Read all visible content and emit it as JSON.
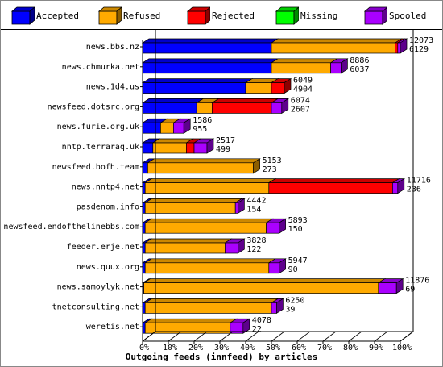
{
  "chart_data": {
    "type": "bar",
    "stacked": true,
    "orientation": "horizontal",
    "title": "",
    "xlabel": "Outgoing feeds (innfeed) by articles",
    "ylabel": "",
    "xlim": [
      0,
      100
    ],
    "x_unit": "percent",
    "grid": false,
    "legend_position": "top",
    "x_ticks": [
      "0%",
      "10%",
      "20%",
      "30%",
      "40%",
      "50%",
      "60%",
      "70%",
      "80%",
      "90%",
      "100%"
    ],
    "categories": [
      "news.bbs.nz",
      "news.chmurka.net",
      "news.1d4.us",
      "newsfeed.dotsrc.org",
      "news.furie.org.uk",
      "nntp.terraraq.uk",
      "newsfeed.bofh.team",
      "news.nntp4.net",
      "pasdenom.info",
      "newsfeed.endofthelinebbs.com",
      "feeder.erje.net",
      "news.quux.org",
      "news.samoylyk.net",
      "tnetconsulting.net",
      "weretis.net"
    ],
    "series": [
      {
        "name": "Accepted",
        "color": "#0000ff",
        "values": [
          50,
          50,
          40,
          21,
          7,
          4,
          2,
          1,
          1,
          1,
          1,
          1,
          0.5,
          1,
          1
        ]
      },
      {
        "name": "Refused",
        "color": "#ffaa00",
        "values": [
          48,
          23,
          10,
          6,
          5,
          13,
          41,
          48,
          35,
          47,
          31,
          48,
          91,
          49,
          33
        ]
      },
      {
        "name": "Rejected",
        "color": "#ff0000",
        "values": [
          1,
          0,
          5,
          23,
          0,
          3,
          0,
          48,
          0,
          0,
          0,
          0,
          0,
          0,
          0
        ]
      },
      {
        "name": "Missing",
        "color": "#00ff00",
        "values": [
          0,
          0,
          0,
          0,
          0,
          0,
          0,
          0,
          0,
          0,
          0,
          0,
          0,
          0,
          0
        ]
      },
      {
        "name": "Spooled",
        "color": "#aa00ff",
        "values": [
          1,
          4,
          0,
          4,
          4,
          5,
          0,
          2,
          1,
          5,
          5,
          4,
          7,
          2,
          5
        ]
      }
    ],
    "value_labels": [
      [
        "12073",
        "6129"
      ],
      [
        "8886",
        "6037"
      ],
      [
        "6049",
        "4904"
      ],
      [
        "6074",
        "2607"
      ],
      [
        "1586",
        "955"
      ],
      [
        "2517",
        "499"
      ],
      [
        "5153",
        "273"
      ],
      [
        "11716",
        "236"
      ],
      [
        "4442",
        "154"
      ],
      [
        "5893",
        "150"
      ],
      [
        "3828",
        "122"
      ],
      [
        "5947",
        "90"
      ],
      [
        "11876",
        "69"
      ],
      [
        "6250",
        "39"
      ],
      [
        "4078",
        "22"
      ]
    ]
  },
  "legend": {
    "items": [
      {
        "label": "Accepted",
        "color": "#0000ff"
      },
      {
        "label": "Refused",
        "color": "#ffaa00"
      },
      {
        "label": "Rejected",
        "color": "#ff0000"
      },
      {
        "label": "Missing",
        "color": "#00ff00"
      },
      {
        "label": "Spooled",
        "color": "#aa00ff"
      }
    ]
  }
}
